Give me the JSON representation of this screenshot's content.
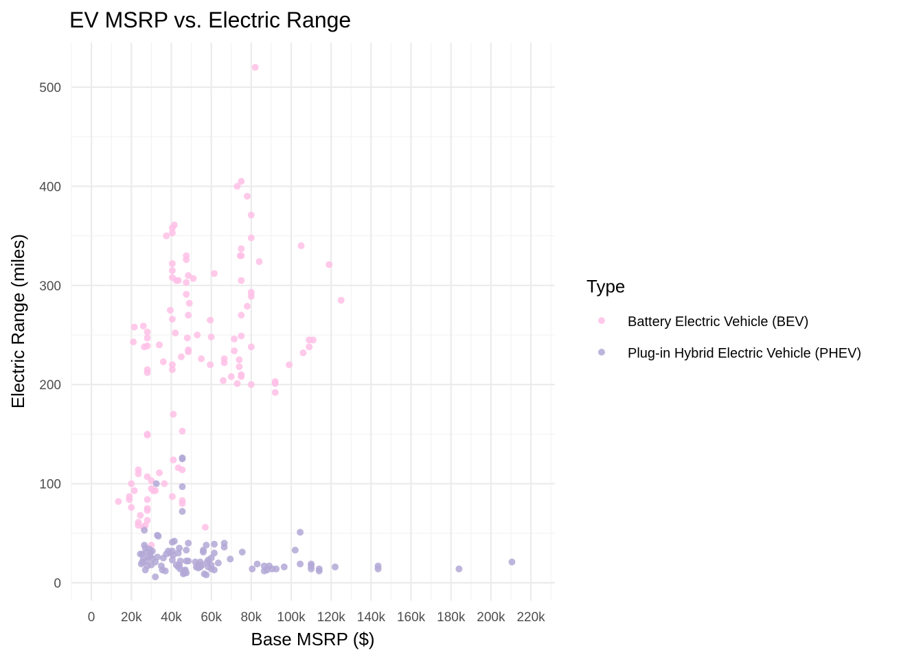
{
  "chart_data": {
    "type": "scatter",
    "title": "EV MSRP vs. Electric Range",
    "xlabel": "Base MSRP ($)",
    "ylabel": "Electric Range (miles)",
    "xlim": [
      -10000,
      232000
    ],
    "ylim": [
      -18,
      545
    ],
    "x_ticks": [
      0,
      20000,
      40000,
      60000,
      80000,
      100000,
      120000,
      140000,
      160000,
      180000,
      200000,
      220000
    ],
    "x_tick_labels": [
      "0",
      "20k",
      "40k",
      "60k",
      "80k",
      "100k",
      "120k",
      "140k",
      "160k",
      "180k",
      "200k",
      "220k"
    ],
    "y_ticks": [
      0,
      100,
      200,
      300,
      400,
      500
    ],
    "y_tick_labels": [
      "0",
      "100",
      "200",
      "300",
      "400",
      "500"
    ],
    "grid": true,
    "legend": {
      "title": "Type",
      "placement": "right"
    },
    "series": [
      {
        "name": "Battery Electric Vehicle (BEV)",
        "color": "#ffc0e6",
        "points": [
          [
            82000,
            520
          ],
          [
            75000,
            405
          ],
          [
            73000,
            400
          ],
          [
            78000,
            390
          ],
          [
            80000,
            371
          ],
          [
            41500,
            361
          ],
          [
            40500,
            358
          ],
          [
            40500,
            353
          ],
          [
            37500,
            350
          ],
          [
            80000,
            348
          ],
          [
            105000,
            340
          ],
          [
            75000,
            337
          ],
          [
            75000,
            330
          ],
          [
            74500,
            330
          ],
          [
            47500,
            330
          ],
          [
            47500,
            326
          ],
          [
            84000,
            324
          ],
          [
            40500,
            322
          ],
          [
            119000,
            321
          ],
          [
            40500,
            315
          ],
          [
            61500,
            312
          ],
          [
            48500,
            310
          ],
          [
            40500,
            308
          ],
          [
            51000,
            307
          ],
          [
            42500,
            305
          ],
          [
            75000,
            305
          ],
          [
            43500,
            305
          ],
          [
            47500,
            303
          ],
          [
            80000,
            293
          ],
          [
            80000,
            289
          ],
          [
            47500,
            291
          ],
          [
            125000,
            285
          ],
          [
            49000,
            282
          ],
          [
            78000,
            279
          ],
          [
            39500,
            275
          ],
          [
            48500,
            270
          ],
          [
            75000,
            270
          ],
          [
            40500,
            266
          ],
          [
            59500,
            265
          ],
          [
            26000,
            259
          ],
          [
            21500,
            258
          ],
          [
            28000,
            253
          ],
          [
            42000,
            252
          ],
          [
            53000,
            250
          ],
          [
            75000,
            249
          ],
          [
            60000,
            248
          ],
          [
            111000,
            245
          ],
          [
            109000,
            245
          ],
          [
            48000,
            247
          ],
          [
            28000,
            247
          ],
          [
            71500,
            246
          ],
          [
            21000,
            243
          ],
          [
            34000,
            240
          ],
          [
            28000,
            239
          ],
          [
            26500,
            238
          ],
          [
            80000,
            238
          ],
          [
            109000,
            238
          ],
          [
            48500,
            235
          ],
          [
            71500,
            234
          ],
          [
            48500,
            233
          ],
          [
            106000,
            232
          ],
          [
            45000,
            228
          ],
          [
            66500,
            226
          ],
          [
            55000,
            226
          ],
          [
            74000,
            225
          ],
          [
            36000,
            223
          ],
          [
            66500,
            222
          ],
          [
            40500,
            220
          ],
          [
            59500,
            220
          ],
          [
            99000,
            220
          ],
          [
            74000,
            218
          ],
          [
            28000,
            215
          ],
          [
            40500,
            215
          ],
          [
            28000,
            212
          ],
          [
            75000,
            210
          ],
          [
            75000,
            208
          ],
          [
            70000,
            208
          ],
          [
            66000,
            204
          ],
          [
            92000,
            203
          ],
          [
            92000,
            201
          ],
          [
            73000,
            201
          ],
          [
            80000,
            200
          ],
          [
            92000,
            192
          ],
          [
            41000,
            170
          ],
          [
            45500,
            153
          ],
          [
            28000,
            150
          ],
          [
            28000,
            149
          ],
          [
            41000,
            124
          ],
          [
            43500,
            116
          ],
          [
            45500,
            114
          ],
          [
            23500,
            114
          ],
          [
            23500,
            110
          ],
          [
            34000,
            111
          ],
          [
            28000,
            107
          ],
          [
            30000,
            103
          ],
          [
            20000,
            100
          ],
          [
            36500,
            100
          ],
          [
            21500,
            93
          ],
          [
            31000,
            93
          ],
          [
            32000,
            93
          ],
          [
            30000,
            95
          ],
          [
            19000,
            87
          ],
          [
            40500,
            87
          ],
          [
            19000,
            84
          ],
          [
            28000,
            84
          ],
          [
            45500,
            83
          ],
          [
            45500,
            80
          ],
          [
            13500,
            82
          ],
          [
            20000,
            76
          ],
          [
            28000,
            75
          ],
          [
            28000,
            73
          ],
          [
            24500,
            68
          ],
          [
            28000,
            63
          ],
          [
            23500,
            61
          ],
          [
            23500,
            58
          ],
          [
            27000,
            58
          ],
          [
            26000,
            56
          ],
          [
            57000,
            56
          ],
          [
            30000,
            38
          ]
        ]
      },
      {
        "name": "Plug-in Hybrid Electric Vehicle (PHEV)",
        "color": "#b3a8d6",
        "points": [
          [
            45500,
            126
          ],
          [
            45500,
            125
          ],
          [
            32500,
            100
          ],
          [
            45500,
            97
          ],
          [
            45500,
            72
          ],
          [
            26500,
            53
          ],
          [
            104500,
            51
          ],
          [
            33000,
            48
          ],
          [
            33500,
            47
          ],
          [
            41500,
            42
          ],
          [
            40500,
            41
          ],
          [
            48500,
            40
          ],
          [
            66500,
            40
          ],
          [
            61500,
            39
          ],
          [
            57500,
            38
          ],
          [
            66500,
            36
          ],
          [
            26500,
            38
          ],
          [
            27000,
            35
          ],
          [
            29000,
            34
          ],
          [
            44000,
            35
          ],
          [
            56000,
            33
          ],
          [
            47500,
            33
          ],
          [
            40500,
            32
          ],
          [
            38500,
            32
          ],
          [
            102000,
            33
          ],
          [
            30500,
            32
          ],
          [
            27500,
            31
          ],
          [
            29500,
            31
          ],
          [
            39500,
            30
          ],
          [
            43500,
            30
          ],
          [
            56000,
            31
          ],
          [
            61500,
            30
          ],
          [
            75500,
            31
          ],
          [
            24500,
            29
          ],
          [
            25500,
            29
          ],
          [
            37500,
            29
          ],
          [
            41000,
            28
          ],
          [
            29500,
            27
          ],
          [
            28500,
            26
          ],
          [
            33000,
            26
          ],
          [
            36000,
            25
          ],
          [
            60000,
            25
          ],
          [
            26000,
            24
          ],
          [
            30500,
            24
          ],
          [
            40500,
            23
          ],
          [
            58500,
            23
          ],
          [
            69500,
            24
          ],
          [
            27500,
            22
          ],
          [
            44500,
            22
          ],
          [
            47500,
            22
          ],
          [
            48500,
            22
          ],
          [
            52000,
            21
          ],
          [
            54500,
            21
          ],
          [
            58000,
            21
          ],
          [
            25500,
            21
          ],
          [
            32000,
            21
          ],
          [
            63500,
            20
          ],
          [
            83000,
            19
          ],
          [
            104500,
            19
          ],
          [
            110000,
            19
          ],
          [
            25000,
            19
          ],
          [
            30000,
            18
          ],
          [
            42500,
            18
          ],
          [
            44000,
            18
          ],
          [
            53500,
            18
          ],
          [
            55500,
            18
          ],
          [
            60000,
            18
          ],
          [
            86500,
            17
          ],
          [
            89000,
            17
          ],
          [
            110000,
            17
          ],
          [
            122000,
            16
          ],
          [
            143500,
            17
          ],
          [
            210500,
            21
          ],
          [
            28000,
            17
          ],
          [
            35000,
            17
          ],
          [
            43500,
            16
          ],
          [
            52500,
            16
          ],
          [
            54500,
            16
          ],
          [
            58500,
            16
          ],
          [
            80500,
            14
          ],
          [
            90500,
            14
          ],
          [
            92500,
            14
          ],
          [
            96500,
            16
          ],
          [
            110000,
            14
          ],
          [
            114000,
            14
          ],
          [
            143500,
            14
          ],
          [
            184000,
            14
          ],
          [
            44500,
            14
          ],
          [
            47000,
            13
          ],
          [
            53500,
            15
          ],
          [
            60000,
            14
          ],
          [
            61500,
            13
          ],
          [
            88000,
            13
          ],
          [
            86500,
            12
          ],
          [
            114000,
            12
          ],
          [
            27000,
            13
          ],
          [
            35500,
            13
          ],
          [
            37000,
            12
          ],
          [
            46500,
            12
          ],
          [
            46500,
            10
          ],
          [
            47500,
            10
          ],
          [
            46000,
            9
          ],
          [
            56500,
            9
          ],
          [
            57500,
            8
          ],
          [
            32000,
            6
          ]
        ]
      }
    ]
  }
}
